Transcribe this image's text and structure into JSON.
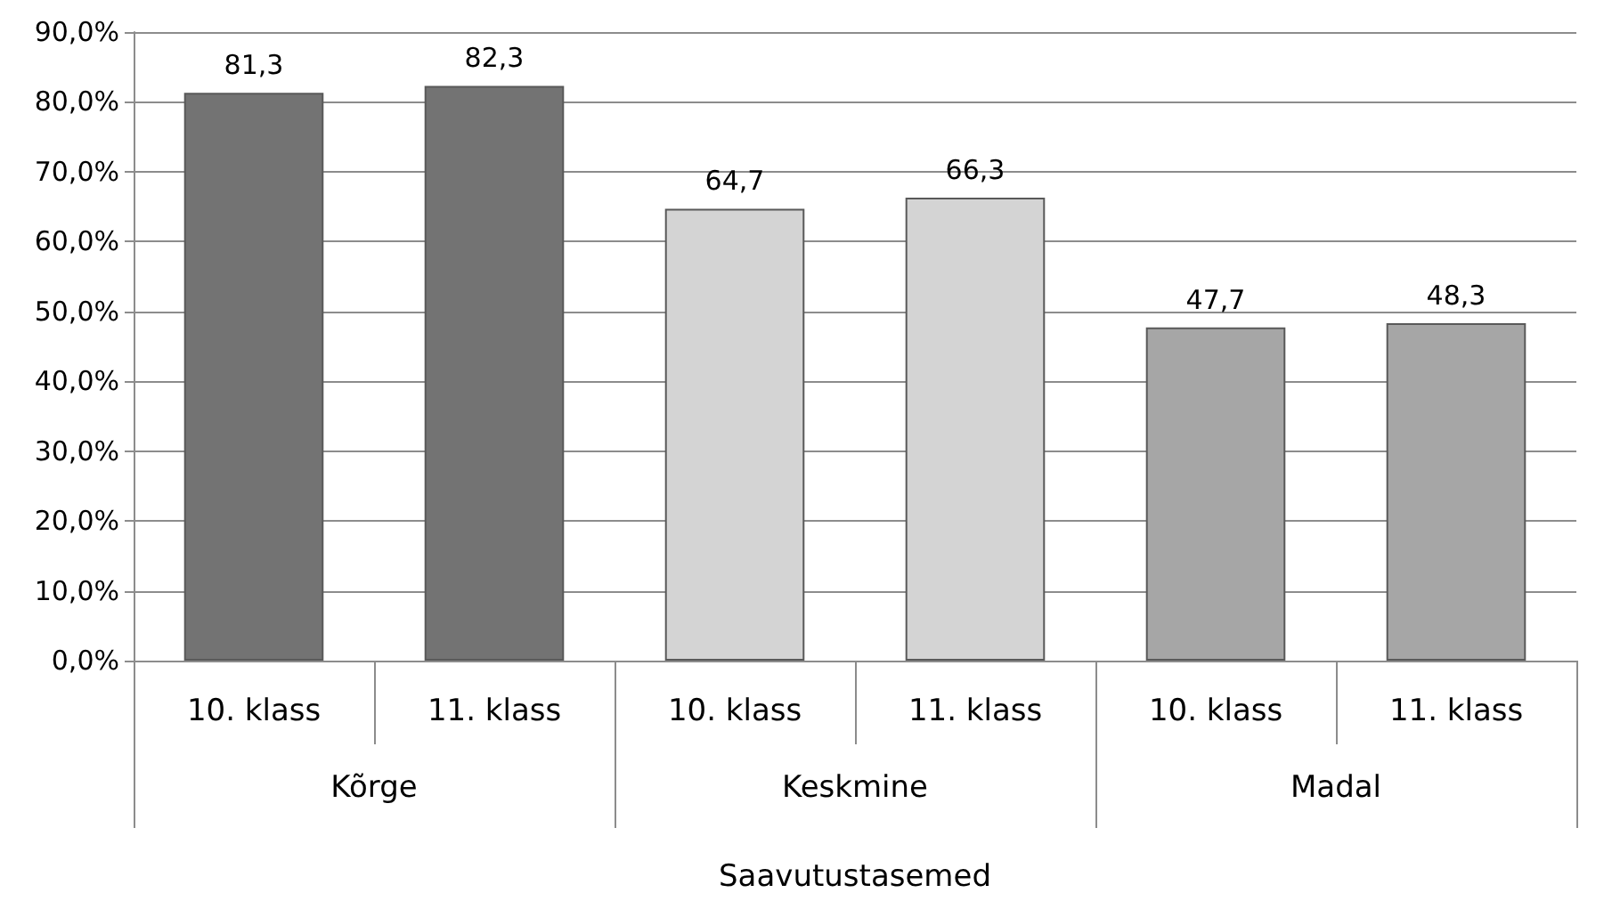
{
  "chart_data": {
    "type": "bar",
    "xlabel": "Saavutustasemed",
    "categories": [
      "10. klass",
      "11. klass",
      "10. klass",
      "11. klass",
      "10. klass",
      "11. klass"
    ],
    "values": [
      81.3,
      82.3,
      64.7,
      66.3,
      47.7,
      48.3
    ],
    "value_labels": [
      "81,3",
      "82,3",
      "64,7",
      "66,3",
      "47,7",
      "48,3"
    ],
    "colors": [
      "#737373",
      "#737373",
      "#d4d4d4",
      "#d4d4d4",
      "#a6a6a6",
      "#a6a6a6"
    ],
    "annotations": [
      "Kõrge",
      "Keskmine",
      "Madal"
    ],
    "ylim": [
      0,
      90
    ],
    "yticks": [
      {
        "value": 0,
        "label": "0,0%"
      },
      {
        "value": 10,
        "label": "10,0%"
      },
      {
        "value": 20,
        "label": "20,0%"
      },
      {
        "value": 30,
        "label": "30,0%"
      },
      {
        "value": 40,
        "label": "40,0%"
      },
      {
        "value": 50,
        "label": "50,0%"
      },
      {
        "value": 60,
        "label": "60,0%"
      },
      {
        "value": 70,
        "label": "70,0%"
      },
      {
        "value": 80,
        "label": "80,0%"
      },
      {
        "value": 90,
        "label": "90,0%"
      }
    ],
    "grid": "y"
  }
}
